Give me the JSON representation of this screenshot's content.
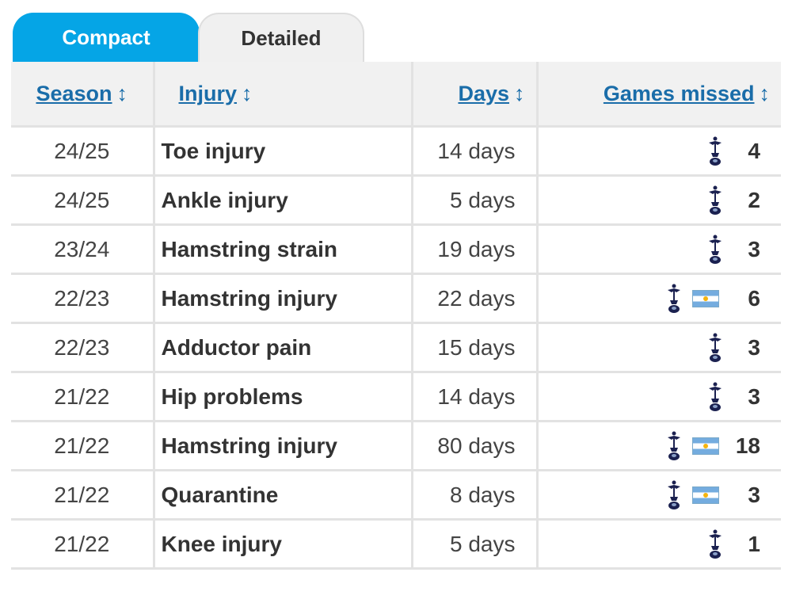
{
  "tabs": [
    {
      "label": "Compact",
      "active": true
    },
    {
      "label": "Detailed",
      "active": false
    }
  ],
  "headers": {
    "season": "Season",
    "injury": "Injury",
    "days": "Days",
    "games": "Games missed",
    "sort_glyph": "↕"
  },
  "colors": {
    "accent": "#05a5e6",
    "link": "#1a6da9"
  },
  "rows": [
    {
      "season": "24/25",
      "injury": "Toe injury",
      "days": "14 days",
      "icons": [
        "club-crest-icon"
      ],
      "games": "4"
    },
    {
      "season": "24/25",
      "injury": "Ankle injury",
      "days": "5 days",
      "icons": [
        "club-crest-icon"
      ],
      "games": "2"
    },
    {
      "season": "23/24",
      "injury": "Hamstring strain",
      "days": "19 days",
      "icons": [
        "club-crest-icon"
      ],
      "games": "3"
    },
    {
      "season": "22/23",
      "injury": "Hamstring injury",
      "days": "22 days",
      "icons": [
        "club-crest-icon",
        "argentina-flag-icon"
      ],
      "games": "6"
    },
    {
      "season": "22/23",
      "injury": "Adductor pain",
      "days": "15 days",
      "icons": [
        "club-crest-icon"
      ],
      "games": "3"
    },
    {
      "season": "21/22",
      "injury": "Hip problems",
      "days": "14 days",
      "icons": [
        "club-crest-icon"
      ],
      "games": "3"
    },
    {
      "season": "21/22",
      "injury": "Hamstring injury",
      "days": "80 days",
      "icons": [
        "club-crest-icon",
        "argentina-flag-icon"
      ],
      "games": "18"
    },
    {
      "season": "21/22",
      "injury": "Quarantine",
      "days": "8 days",
      "icons": [
        "club-crest-icon",
        "argentina-flag-icon"
      ],
      "games": "3"
    },
    {
      "season": "21/22",
      "injury": "Knee injury",
      "days": "5 days",
      "icons": [
        "club-crest-icon"
      ],
      "games": "1"
    }
  ]
}
